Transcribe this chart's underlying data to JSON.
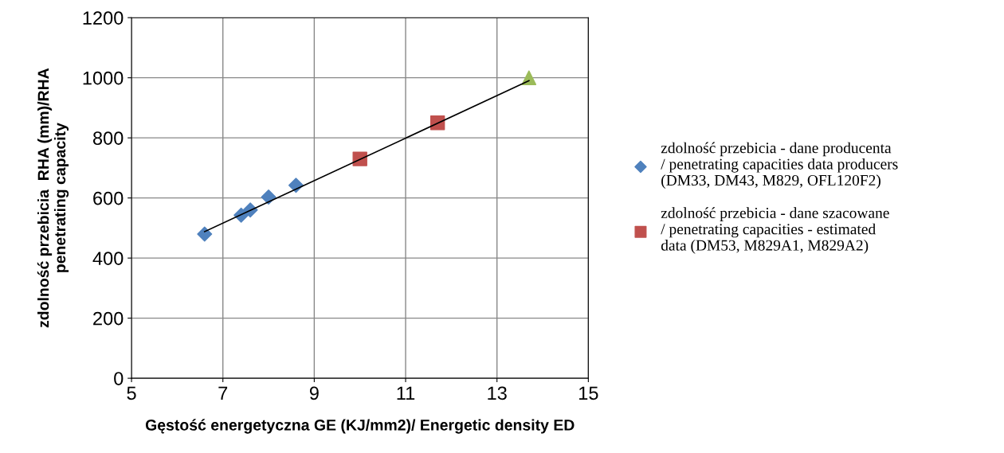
{
  "chart_data": {
    "type": "scatter",
    "xlabel": "Gęstość energetyczna GE (KJ/mm2)/ Energetic density ED",
    "ylabel": "zdolność przebicia  RHA (mm)/RHA\npenetrating capacity",
    "xlim": [
      5,
      15
    ],
    "xticks": [
      5,
      7,
      9,
      11,
      13,
      15
    ],
    "ylim": [
      0,
      1200
    ],
    "yticks": [
      0,
      200,
      400,
      600,
      800,
      1000,
      1200
    ],
    "grid": true,
    "legend": "right",
    "series": [
      {
        "type": "line",
        "color": "#000000",
        "marker": "none",
        "line_style": "solid",
        "x": [
          6.6,
          13.7
        ],
        "values": [
          488,
          990
        ]
      },
      {
        "name": "zdolność przebicia - dane producenta\n/ penetrating capacities data producers\n(DM33, DM43, M829, OFL120F2)",
        "color": "#4f81bd",
        "marker": "diamond",
        "x": [
          6.6,
          7.4,
          7.6,
          8.0,
          8.6
        ],
        "values": [
          480,
          543,
          560,
          603,
          642
        ]
      },
      {
        "name": "zdolność przebicia - dane szacowane\n/ penetrating capacities - estimated\ndata (DM53, M829A1, M829A2)",
        "color": "#c0504d",
        "marker": "square",
        "x": [
          10.0,
          11.7
        ],
        "values": [
          730,
          850
        ]
      },
      {
        "color": "#9bbb59",
        "marker": "triangle",
        "x": [
          13.7
        ],
        "values": [
          1000
        ]
      }
    ]
  }
}
